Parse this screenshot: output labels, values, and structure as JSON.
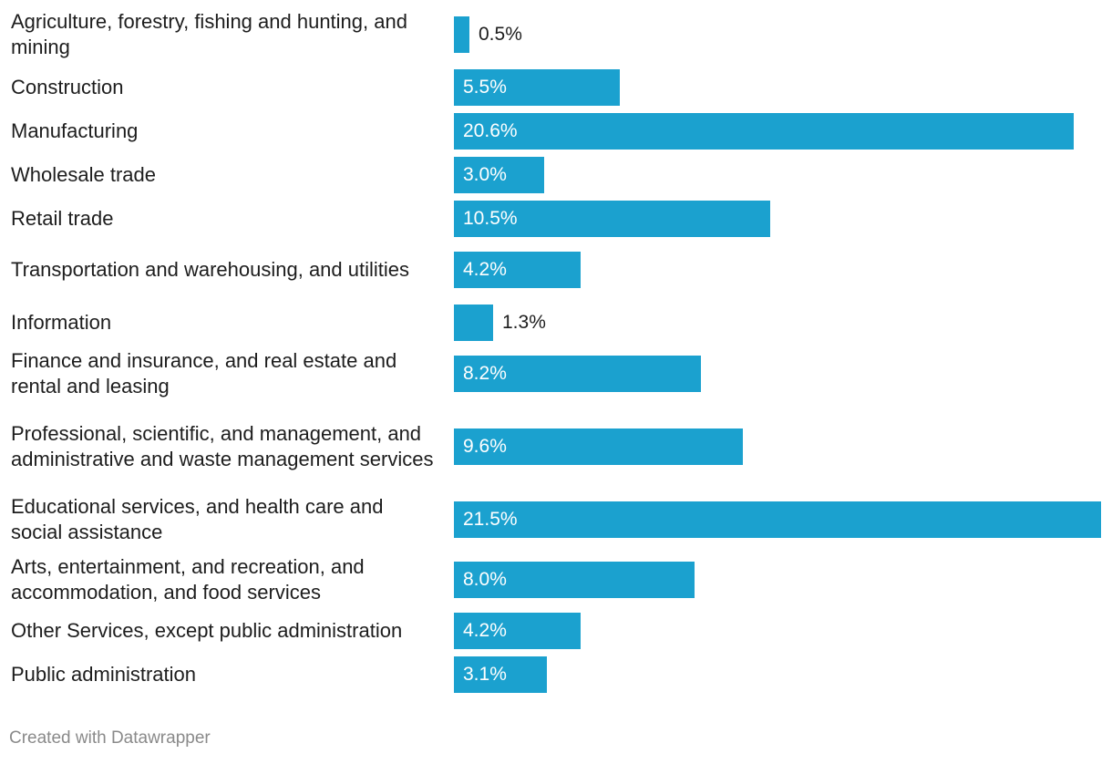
{
  "chart_data": {
    "type": "bar",
    "orientation": "horizontal",
    "title": "",
    "xlabel": "",
    "ylabel": "",
    "xlim": [
      0,
      21.5
    ],
    "grid": false,
    "bar_color": "#1ba1cf",
    "value_suffix": "%",
    "categories": [
      "Agriculture, forestry, fishing and hunting, and mining",
      "Construction",
      "Manufacturing",
      "Wholesale trade",
      "Retail trade",
      "Transportation and warehousing, and utilities",
      "Information",
      "Finance and insurance, and real estate and rental and leasing",
      "Professional, scientific, and management, and administrative and waste management services",
      "Educational services, and health care and social assistance",
      "Arts, entertainment, and recreation, and accommodation, and food services",
      "Other Services, except public administration",
      "Public administration"
    ],
    "values": [
      0.5,
      5.5,
      20.6,
      3.0,
      10.5,
      4.2,
      1.3,
      8.2,
      9.6,
      21.5,
      8.0,
      4.2,
      3.1
    ],
    "value_labels": [
      "0.5%",
      "5.5%",
      "20.6%",
      "3.0%",
      "10.5%",
      "4.2%",
      "1.3%",
      "8.2%",
      "9.6%",
      "21.5%",
      "8.0%",
      "4.2%",
      "3.1%"
    ]
  },
  "footer": {
    "credit": "Created with Datawrapper"
  }
}
